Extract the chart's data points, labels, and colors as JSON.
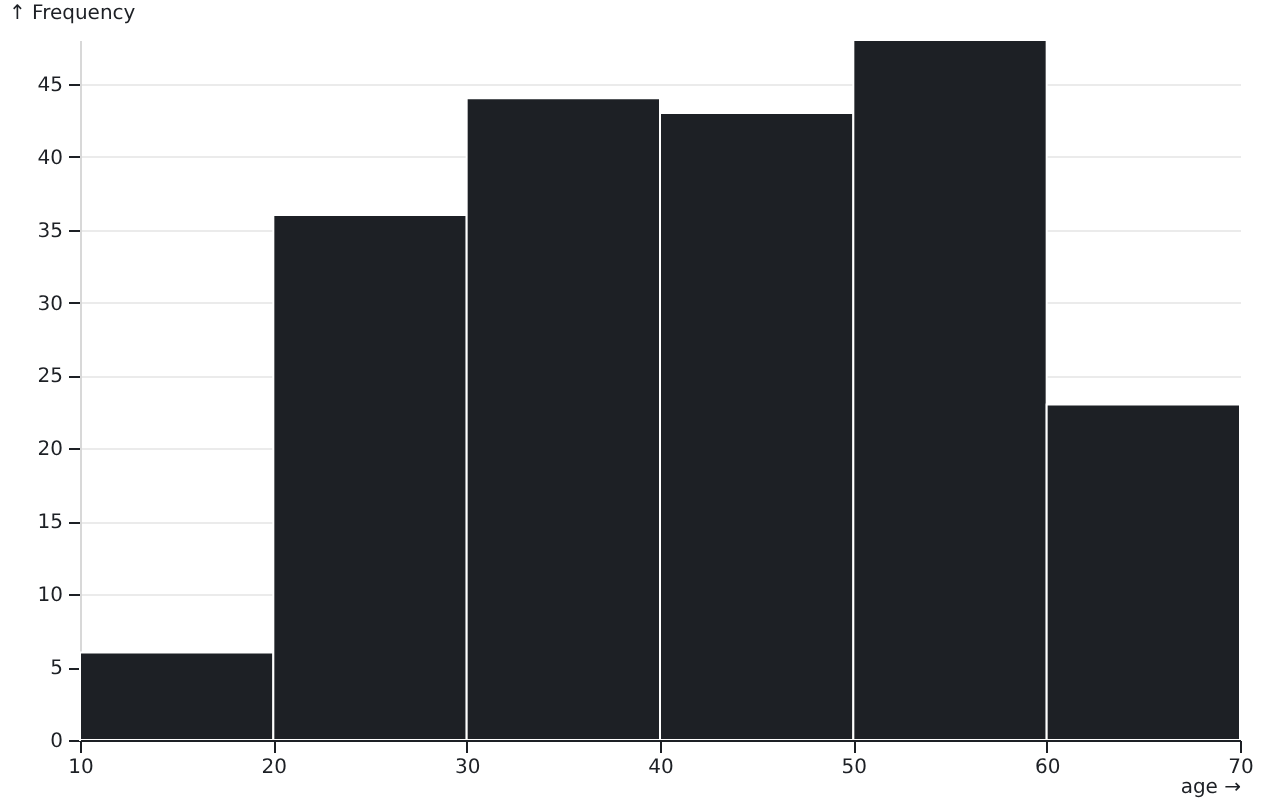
{
  "chart_data": {
    "type": "histogram",
    "xlabel": "age →",
    "ylabel": "↑ Frequency",
    "bins": [
      10,
      20,
      30,
      40,
      50,
      60,
      70
    ],
    "values": [
      6,
      36,
      44,
      43,
      48,
      23
    ],
    "color": "#1d2025",
    "xlim": [
      10,
      70
    ],
    "xticks": [
      10,
      20,
      30,
      40,
      50,
      60,
      70
    ],
    "ylim": [
      0,
      48
    ],
    "yticks": [
      0,
      5,
      10,
      15,
      20,
      25,
      30,
      35,
      40,
      45
    ],
    "grid": "y"
  }
}
